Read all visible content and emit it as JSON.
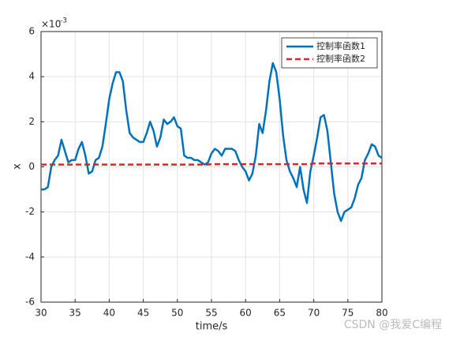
{
  "chart_data": {
    "type": "line",
    "xlabel": "time/s",
    "ylabel": "x",
    "y_multiplier": {
      "base": "×10",
      "exponent": "-3"
    },
    "watermark": "CSDN @我爱C编程",
    "x": [
      30,
      30.5,
      31,
      31.5,
      32,
      32.5,
      33,
      33.5,
      34,
      34.5,
      35,
      35.5,
      36,
      36.5,
      37,
      37.5,
      38,
      38.5,
      39,
      39.5,
      40,
      40.5,
      41,
      41.5,
      42,
      42.5,
      43,
      43.5,
      44,
      44.5,
      45,
      45.5,
      46,
      46.5,
      47,
      47.5,
      48,
      48.5,
      49,
      49.5,
      50,
      50.5,
      51,
      51.5,
      52,
      52.5,
      53,
      53.5,
      54,
      54.5,
      55,
      55.5,
      56,
      56.5,
      57,
      57.5,
      58,
      58.5,
      59,
      59.5,
      60,
      60.5,
      61,
      61.5,
      62,
      62.5,
      63,
      63.5,
      64,
      64.5,
      65,
      65.5,
      66,
      66.5,
      67,
      67.5,
      68,
      68.5,
      69,
      69.5,
      70,
      70.5,
      71,
      71.5,
      72,
      72.5,
      73,
      73.5,
      74,
      74.5,
      75,
      75.5,
      76,
      76.5,
      77,
      77.5,
      78,
      78.5,
      79,
      79.5,
      80
    ],
    "series": [
      {
        "name": "控制率函数1",
        "color": "#0072bd",
        "dash": false,
        "values": [
          -1.0,
          -1.0,
          -0.9,
          0.0,
          0.3,
          0.5,
          1.2,
          0.7,
          0.2,
          0.3,
          0.3,
          0.8,
          1.1,
          0.5,
          -0.3,
          -0.2,
          0.3,
          0.4,
          0.9,
          1.9,
          3.0,
          3.7,
          4.2,
          4.2,
          3.8,
          2.5,
          1.5,
          1.3,
          1.2,
          1.1,
          1.1,
          1.5,
          2.0,
          1.6,
          0.9,
          1.3,
          2.1,
          1.9,
          2.0,
          2.2,
          1.8,
          1.7,
          0.5,
          0.4,
          0.4,
          0.3,
          0.3,
          0.2,
          0.1,
          0.2,
          0.6,
          0.8,
          0.7,
          0.5,
          0.8,
          0.8,
          0.8,
          0.7,
          0.3,
          0.0,
          -0.2,
          -0.6,
          -0.3,
          0.5,
          1.9,
          1.5,
          2.5,
          3.8,
          4.6,
          4.2,
          3.0,
          1.4,
          0.3,
          -0.2,
          -0.5,
          -0.9,
          0.0,
          -1.0,
          -1.6,
          -0.2,
          0.5,
          1.3,
          2.2,
          2.3,
          1.6,
          0.2,
          -1.2,
          -2.0,
          -2.4,
          -2.0,
          -1.9,
          -1.8,
          -1.4,
          -0.8,
          -0.5,
          0.3,
          0.6,
          1.0,
          0.9,
          0.5,
          0.4
        ]
      },
      {
        "name": "控制率函数2",
        "color": "#d62728",
        "dash": true,
        "values": [
          0.1,
          0.1,
          0.1,
          0.1,
          0.1,
          0.1,
          0.1,
          0.1,
          0.1,
          0.1,
          0.1,
          0.1,
          0.1,
          0.1,
          0.1,
          0.1,
          0.1,
          0.1,
          0.1,
          0.1,
          0.1,
          0.1,
          0.1,
          0.1,
          0.1,
          0.1,
          0.1,
          0.1,
          0.1,
          0.1,
          0.1,
          0.1,
          0.1,
          0.1,
          0.1,
          0.1,
          0.1,
          0.1,
          0.1,
          0.1,
          0.1,
          0.1,
          0.1,
          0.1,
          0.1,
          0.1,
          0.1,
          0.1,
          0.1,
          0.1,
          0.12,
          0.12,
          0.12,
          0.12,
          0.12,
          0.12,
          0.12,
          0.12,
          0.12,
          0.12,
          0.12,
          0.12,
          0.12,
          0.12,
          0.12,
          0.12,
          0.12,
          0.12,
          0.12,
          0.12,
          0.12,
          0.12,
          0.12,
          0.12,
          0.12,
          0.12,
          0.12,
          0.12,
          0.12,
          0.12,
          0.15,
          0.15,
          0.15,
          0.15,
          0.15,
          0.15,
          0.15,
          0.15,
          0.15,
          0.15,
          0.15,
          0.15,
          0.15,
          0.15,
          0.15,
          0.15,
          0.15,
          0.15,
          0.15,
          0.15,
          0.15
        ]
      }
    ],
    "xlim": [
      30,
      80
    ],
    "xticks": [
      30,
      35,
      40,
      45,
      50,
      55,
      60,
      65,
      70,
      75,
      80
    ],
    "ylim": [
      -6,
      6
    ],
    "yticks": [
      -6,
      -4,
      -2,
      0,
      2,
      4,
      6
    ],
    "grid": true,
    "legend": "top-right"
  }
}
